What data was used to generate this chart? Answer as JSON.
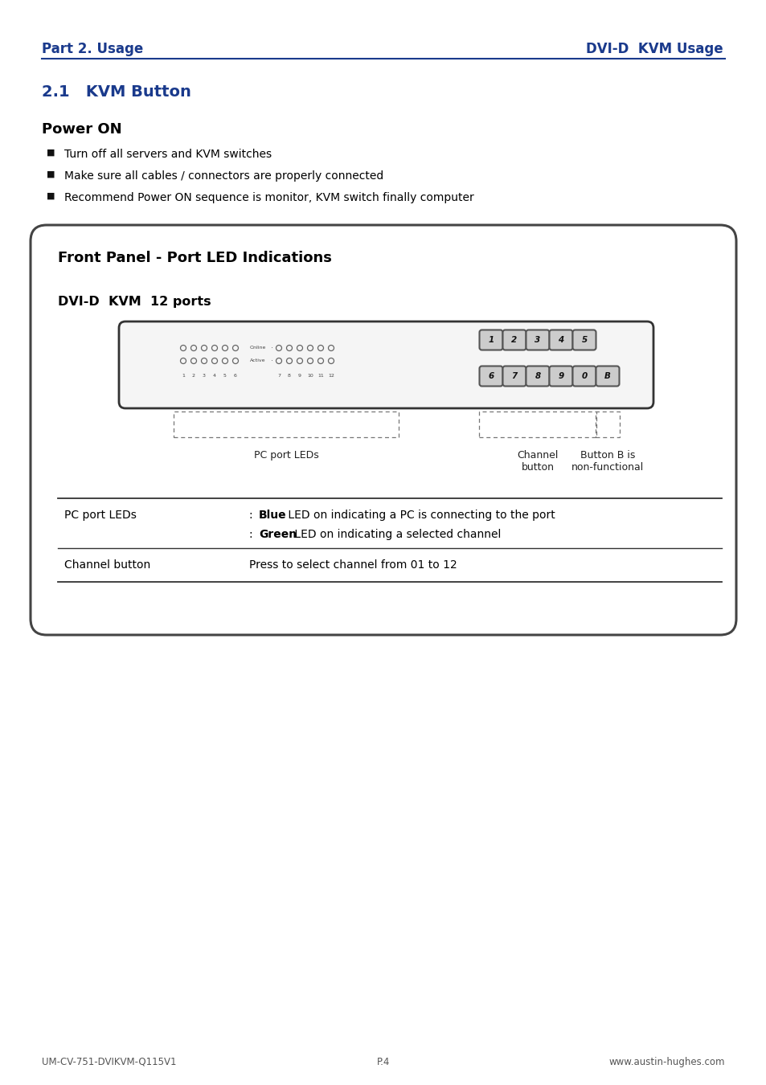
{
  "page_title_left": "Part 2. Usage",
  "page_title_right": "DVI-D  KVM Usage",
  "section_title": "2.1   KVM Button",
  "power_on_title": "Power ON",
  "bullet_points": [
    "Turn off all servers and KVM switches",
    "Make sure all cables / connectors are properly connected",
    "Recommend Power ON sequence is monitor, KVM switch finally computer"
  ],
  "box_title": "Front Panel - Port LED Indications",
  "kvm_subtitle": "DVI-D  KVM  12 ports",
  "channel_buttons_row1": [
    "1",
    "2",
    "3",
    "4",
    "5"
  ],
  "channel_buttons_row2": [
    "6",
    "7",
    "8",
    "9",
    "0",
    "B"
  ],
  "label_pc_port": "PC port LEDs",
  "label_channel": "Channel\nbutton",
  "label_button_b": "Button B is\nnon-functional",
  "table_row1_col1": "PC port LEDs",
  "table_row1_col2_bold": "Blue",
  "table_row1_col2_rest": " LED on indicating a PC is connecting to the port",
  "table_row1_col2b_bold": "Green",
  "table_row1_col2b_rest": " LED on indicating a selected channel",
  "table_row2_col1": "Channel button",
  "table_row2_col2": "Press to select channel from 01 to 12",
  "footer_left": "UM-CV-751-DVIKVM-Q115V1",
  "footer_center": "P.4",
  "footer_right": "www.austin-hughes.com",
  "title_color": "#1a3a8c",
  "text_color": "#000000",
  "bg_color": "#ffffff"
}
